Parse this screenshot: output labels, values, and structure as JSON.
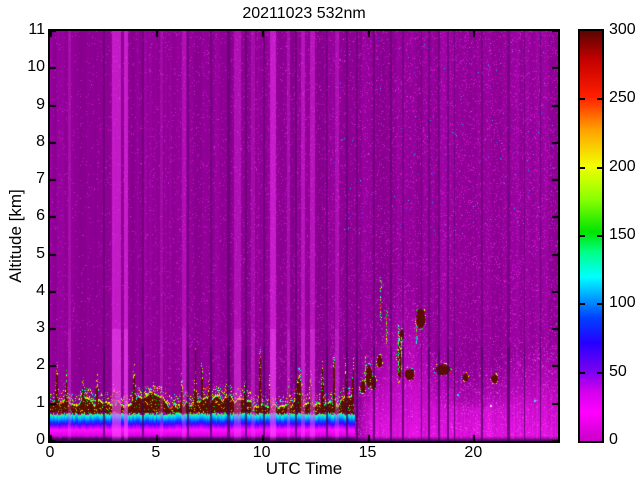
{
  "chart_data": {
    "type": "heatmap",
    "title": "20211023 532nm",
    "xlabel": "UTC Time",
    "ylabel": "Altitude [km]",
    "xlim": [
      0,
      24
    ],
    "ylim": [
      0,
      11
    ],
    "xticks": [
      0,
      5,
      10,
      15,
      20
    ],
    "yticks": [
      0,
      1,
      2,
      3,
      4,
      5,
      6,
      7,
      8,
      9,
      10,
      11
    ],
    "grid": false,
    "colorbar": {
      "min": 0,
      "max": 300,
      "ticks": [
        0,
        50,
        100,
        150,
        200,
        250,
        300
      ],
      "colormap": [
        {
          "pos": 0.0,
          "color": "#c800c8"
        },
        {
          "pos": 0.07,
          "color": "#ff00ff"
        },
        {
          "pos": 0.12,
          "color": "#d400ee"
        },
        {
          "pos": 0.17,
          "color": "#7a00f0"
        },
        {
          "pos": 0.24,
          "color": "#2600ff"
        },
        {
          "pos": 0.3,
          "color": "#0040ff"
        },
        {
          "pos": 0.35,
          "color": "#00a0ff"
        },
        {
          "pos": 0.4,
          "color": "#00ffff"
        },
        {
          "pos": 0.46,
          "color": "#00ff88"
        },
        {
          "pos": 0.51,
          "color": "#00e400"
        },
        {
          "pos": 0.59,
          "color": "#8aff00"
        },
        {
          "pos": 0.67,
          "color": "#f2ff00"
        },
        {
          "pos": 0.76,
          "color": "#ffa000"
        },
        {
          "pos": 0.84,
          "color": "#ff1e00"
        },
        {
          "pos": 0.93,
          "color": "#c40000"
        },
        {
          "pos": 1.0,
          "color": "#5a0500"
        }
      ]
    },
    "heatmap": {
      "background": "#8e0094",
      "speckles": {
        "count": 30000
      },
      "bright_stripes": [
        {
          "t": 0.95,
          "w": 0.18,
          "a": 0.22
        },
        {
          "t": 3.2,
          "w": 0.45,
          "a": 0.45
        },
        {
          "t": 3.62,
          "w": 0.2,
          "a": 0.5
        },
        {
          "t": 5.3,
          "w": 0.15,
          "a": 0.18
        },
        {
          "t": 6.35,
          "w": 0.2,
          "a": 0.25
        },
        {
          "t": 8.9,
          "w": 0.35,
          "a": 0.28
        },
        {
          "t": 9.6,
          "w": 0.2,
          "a": 0.22
        },
        {
          "t": 10.55,
          "w": 0.3,
          "a": 0.45
        },
        {
          "t": 11.3,
          "w": 0.15,
          "a": 0.25
        },
        {
          "t": 12.0,
          "w": 0.2,
          "a": 0.3
        },
        {
          "t": 12.45,
          "w": 0.25,
          "a": 0.35
        },
        {
          "t": 13.6,
          "w": 0.2,
          "a": 0.25
        }
      ],
      "dark_stripes": [
        {
          "t": 2.56,
          "w": 0.1
        },
        {
          "t": 4.4,
          "w": 0.1
        },
        {
          "t": 6.55,
          "w": 0.12
        },
        {
          "t": 7.62,
          "w": 0.1
        },
        {
          "t": 8.45,
          "w": 0.16
        },
        {
          "t": 9.3,
          "w": 0.1
        },
        {
          "t": 10.15,
          "w": 0.1
        },
        {
          "t": 11.65,
          "w": 0.1
        },
        {
          "t": 13.1,
          "w": 0.12
        },
        {
          "t": 14.05,
          "w": 0.1
        },
        {
          "t": 14.55,
          "w": 0.1
        },
        {
          "t": 15.35,
          "w": 0.12
        },
        {
          "t": 16.15,
          "w": 0.1
        },
        {
          "t": 16.7,
          "w": 0.1
        },
        {
          "t": 17.6,
          "w": 0.08
        },
        {
          "t": 17.95,
          "w": 0.1
        },
        {
          "t": 18.4,
          "w": 0.12
        },
        {
          "t": 18.85,
          "w": 0.1
        },
        {
          "t": 19.15,
          "w": 0.08
        },
        {
          "t": 20.45,
          "w": 0.1
        },
        {
          "t": 21.7,
          "w": 0.16
        },
        {
          "t": 22.45,
          "w": 0.08
        },
        {
          "t": 23.2,
          "w": 0.08
        }
      ],
      "boundary_layer": {
        "t_end": 14.45,
        "base_top": 1.05,
        "variation": 0.3,
        "halo_km": 0.3,
        "red_color": "#5a0e00",
        "bands": [
          {
            "top": 0.07,
            "color": "#4a0066"
          },
          {
            "top": 0.13,
            "color": "#d800e0"
          },
          {
            "top": 0.3,
            "color": "#ff10ff"
          },
          {
            "top": 0.38,
            "color": "#b400ff"
          },
          {
            "top": 0.46,
            "color": "#4600ff"
          },
          {
            "top": 0.54,
            "color": "#0050ff"
          },
          {
            "top": 0.62,
            "color": "#00b4ff"
          },
          {
            "top": 0.68,
            "color": "#00f0e0"
          },
          {
            "top": 0.73,
            "color": "#66ff33"
          }
        ],
        "halo_colors": [
          "#00ff00",
          "#ccff00",
          "#ff4400",
          "#00ffff",
          "#ff00ff",
          "#ffff00"
        ],
        "fringe_colors": [
          "#aaff00",
          "#ffff00",
          "#00ff66",
          "#ff5500"
        ],
        "inner_colors": [
          "#7c1600",
          "#8b0000",
          "#ffbb00",
          "#00cc00",
          "#3a0800"
        ],
        "spikes": [
          {
            "t": 0.3,
            "h": 1.9,
            "w": 0.12
          },
          {
            "t": 0.75,
            "h": 1.6,
            "w": 0.1
          },
          {
            "t": 1.55,
            "h": 1.5,
            "w": 0.12
          },
          {
            "t": 2.2,
            "h": 1.55,
            "w": 0.1
          },
          {
            "t": 3.0,
            "h": 1.45,
            "w": 0.08
          },
          {
            "t": 3.95,
            "h": 1.8,
            "w": 0.12
          },
          {
            "t": 4.85,
            "h": 1.35,
            "w": 0.1
          },
          {
            "t": 6.2,
            "h": 1.6,
            "w": 0.1
          },
          {
            "t": 6.85,
            "h": 2.45,
            "w": 0.07
          },
          {
            "t": 7.15,
            "h": 2.1,
            "w": 0.07
          },
          {
            "t": 7.5,
            "h": 1.65,
            "w": 0.08
          },
          {
            "t": 8.35,
            "h": 1.5,
            "w": 0.08
          },
          {
            "t": 9.2,
            "h": 1.6,
            "w": 0.08
          },
          {
            "t": 9.9,
            "h": 2.55,
            "w": 0.06
          },
          {
            "t": 10.35,
            "h": 1.5,
            "w": 0.08
          },
          {
            "t": 11.25,
            "h": 1.45,
            "w": 0.1
          },
          {
            "t": 11.75,
            "h": 1.7,
            "w": 0.3
          },
          {
            "t": 12.3,
            "h": 1.6,
            "w": 0.12
          },
          {
            "t": 12.85,
            "h": 1.95,
            "w": 0.1
          },
          {
            "t": 13.4,
            "h": 2.25,
            "w": 0.09
          },
          {
            "t": 13.95,
            "h": 1.85,
            "w": 0.1
          },
          {
            "t": 14.3,
            "h": 2.0,
            "w": 0.08
          }
        ]
      },
      "pink_region": {
        "t0": 14.35,
        "ramp": 0.9,
        "curve": [
          [
            14.35,
            1.0
          ],
          [
            15.0,
            2.2
          ],
          [
            15.8,
            3.4
          ],
          [
            16.8,
            4.3
          ],
          [
            17.6,
            3.4
          ],
          [
            18.3,
            2.2
          ],
          [
            19.3,
            1.8
          ],
          [
            20.3,
            1.8
          ],
          [
            21.3,
            2.1
          ],
          [
            22.3,
            2.5
          ],
          [
            24,
            2.9
          ]
        ]
      },
      "blobs": [
        {
          "t": 14.75,
          "a": 1.45,
          "w": 0.18,
          "h": 0.3
        },
        {
          "t": 15.05,
          "a": 1.75,
          "w": 0.25,
          "h": 0.55
        },
        {
          "t": 15.3,
          "a": 1.55,
          "w": 0.2,
          "h": 0.35
        },
        {
          "t": 15.55,
          "a": 2.15,
          "w": 0.18,
          "h": 0.3
        },
        {
          "t": 16.5,
          "a": 2.15,
          "w": 0.16,
          "h": 1.0
        },
        {
          "t": 16.62,
          "a": 2.85,
          "w": 0.2,
          "h": 0.3
        },
        {
          "t": 16.95,
          "a": 1.8,
          "w": 0.45,
          "h": 0.3
        },
        {
          "t": 17.5,
          "a": 3.3,
          "w": 0.38,
          "h": 0.5
        },
        {
          "t": 18.55,
          "a": 1.92,
          "w": 0.65,
          "h": 0.28
        },
        {
          "t": 19.6,
          "a": 1.72,
          "w": 0.22,
          "h": 0.2
        },
        {
          "t": 21.0,
          "a": 1.68,
          "w": 0.28,
          "h": 0.2
        }
      ],
      "plumes": [
        {
          "t": 14.9,
          "a0": 1.6,
          "a1": 2.3
        },
        {
          "t": 15.62,
          "a0": 3.2,
          "a1": 4.4
        },
        {
          "t": 15.9,
          "a0": 2.5,
          "a1": 3.5
        },
        {
          "t": 16.45,
          "a0": 1.8,
          "a1": 3.1
        },
        {
          "t": 16.62,
          "a0": 1.9,
          "a1": 2.8
        },
        {
          "t": 17.3,
          "a0": 2.6,
          "a1": 3.1
        }
      ],
      "plume_colors": [
        "#00d400",
        "#55ff00",
        "#00ffaa",
        "#ffff00",
        "#ff5500",
        "#00ffff"
      ],
      "stray_dots": [
        {
          "t": 20.8,
          "a": 0.95,
          "color": "#eaffff"
        },
        {
          "t": 19.25,
          "a": 1.25,
          "color": "#00e4ff"
        },
        {
          "t": 22.9,
          "a": 1.1,
          "color": "#55c8ff"
        }
      ]
    }
  }
}
